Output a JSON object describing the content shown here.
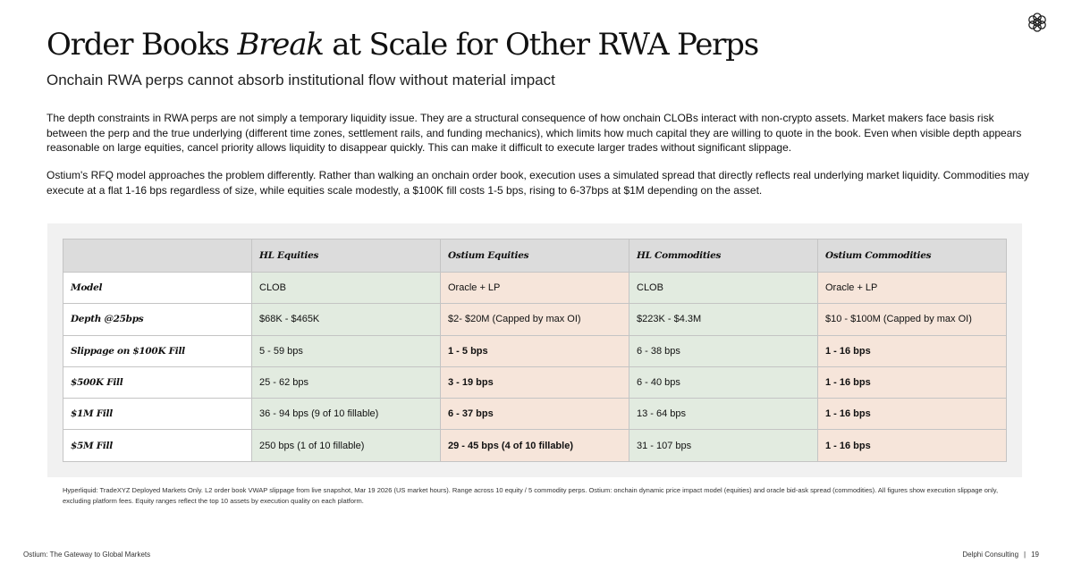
{
  "header": {
    "logo_icon": "ostium-flower-icon",
    "title_pre": "Order Books ",
    "title_em": "Break",
    "title_post": " at Scale for Other RWA Perps",
    "subtitle": "Onchain RWA perps cannot absorb institutional flow without material impact"
  },
  "body": {
    "paragraph_1": "The depth constraints in RWA perps are not simply a temporary liquidity issue. They are a structural consequence of how onchain CLOBs interact with non-crypto assets. Market makers face basis risk between the perp and the true underlying (different time zones, settlement rails, and funding mechanics), which limits how much capital they are willing to quote in the book. Even when visible depth appears reasonable on large equities, cancel priority allows liquidity to disappear quickly. This can make it difficult to execute larger trades without significant slippage.",
    "paragraph_2": "Ostium's RFQ model approaches the problem differently. Rather than walking an onchain order book, execution uses a simulated spread that directly reflects real underlying market liquidity. Commodities may execute at a flat 1-16 bps regardless of size, while equities scale modestly, a $100K fill costs 1-5 bps, rising to 6-37bps at $1M depending on the asset."
  },
  "table": {
    "columns": [
      "",
      "HL Equities",
      "Ostium Equities",
      "HL Commodities",
      "Ostium Commodities"
    ],
    "rows": [
      {
        "label": "Model",
        "cells": [
          "CLOB",
          "Oracle + LP",
          "CLOB",
          "Oracle + LP"
        ]
      },
      {
        "label": "Depth @25bps",
        "cells": [
          "$68K - $465K",
          "$2- $20M (Capped by max OI)",
          "$223K - $4.3M",
          "$10 - $100M (Capped by max OI)"
        ]
      },
      {
        "label": "Slippage on $100K Fill",
        "cells": [
          "5 - 59 bps",
          "1 - 5 bps",
          "6 - 38 bps",
          "1 - 16 bps"
        ]
      },
      {
        "label": "$500K Fill",
        "cells": [
          "25 - 62 bps",
          "3 - 19 bps",
          "6 - 40 bps",
          "1 - 16 bps"
        ]
      },
      {
        "label": "$1M Fill",
        "cells": [
          "36 - 94 bps (9 of 10 fillable)",
          "6 - 37 bps",
          "13 - 64 bps",
          "1 - 16 bps"
        ]
      },
      {
        "label": "$5M Fill",
        "cells": [
          "250 bps (1 of 10 fillable)",
          "29 - 45 bps (4 of 10 fillable)",
          "31 - 107 bps",
          "1 - 16 bps"
        ]
      }
    ],
    "colors": {
      "hl_cell": "#e2ebe0",
      "ostium_cell": "#f6e5da",
      "header": "#dcdcdc"
    }
  },
  "footnote": "Hyperliquid: TradeXYZ Deployed Markets Only. L2 order book VWAP slippage from live snapshot, Mar 19 2026 (US market hours). Range across 10 equity / 5 commodity perps. Ostium: onchain dynamic price impact model (equities) and oracle bid-ask spread (commodities). All figures show execution slippage only, excluding platform fees. Equity ranges reflect the top 10 assets by execution quality on each platform.",
  "footer": {
    "left": "Ostium: The Gateway to Global Markets",
    "right_company": "Delphi Consulting",
    "separator": "|",
    "page_number": "19"
  }
}
